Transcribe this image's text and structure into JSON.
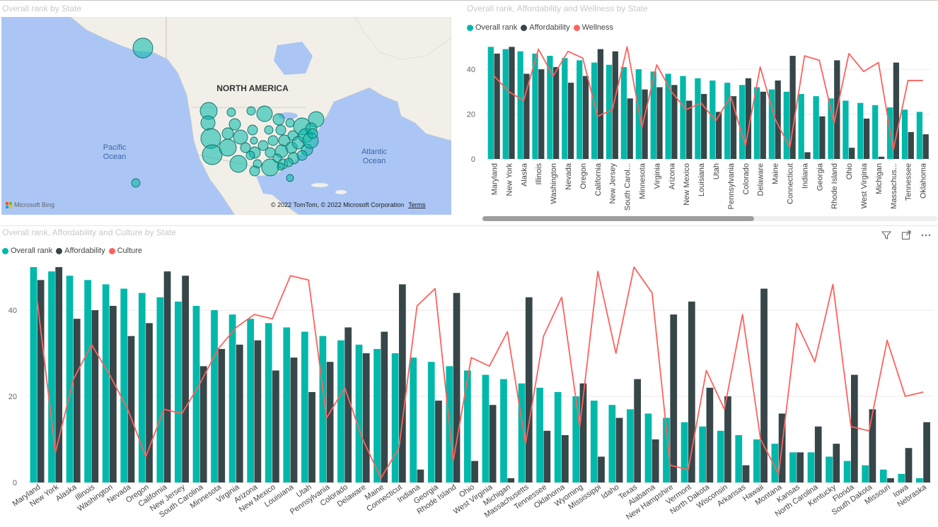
{
  "colors": {
    "overall": "#01b8aa",
    "affordability": "#374649",
    "line": "#fd625e",
    "map_water": "#abc6f4",
    "map_land": "#f2efe9"
  },
  "map_visual": {
    "title": "Overall rank by State",
    "labels": {
      "continent": "NORTH AMERICA",
      "pacific": "Pacific\nOcean",
      "atlantic": "Atlantic\nOcean"
    },
    "attribution": "© 2022 TomTom, © 2022 Microsoft Corporation",
    "terms_link": "Terms",
    "provider": "Microsoft Bing"
  },
  "toolbar": {
    "filter_icon": "filter-icon",
    "focus_icon": "focus-mode-icon",
    "more_icon": "more-options-icon"
  },
  "chart_data": [
    {
      "type": "bar",
      "title": "Overall rank, Affordability and Wellness by State",
      "legend_position": "top-left",
      "ylim": [
        0,
        52
      ],
      "yticks": [
        0,
        20,
        40
      ],
      "grid": true,
      "categories": [
        "Maryland",
        "New York",
        "Alaska",
        "Illinois",
        "Washington",
        "Nevada",
        "Oregon",
        "California",
        "New Jersey",
        "South Carol...",
        "Minnesota",
        "Virginia",
        "Arizona",
        "New Mexico",
        "Louisiana",
        "Utah",
        "Pennsylvania",
        "Colorado",
        "Delaware",
        "Maine",
        "Connecticut",
        "Indiana",
        "Georgia",
        "Rhode Island",
        "Ohio",
        "West Virginia",
        "Michigan",
        "Massachus...",
        "Tennessee",
        "Oklahoma"
      ],
      "series": [
        {
          "name": "Overall rank",
          "kind": "bar",
          "values": [
            50,
            49,
            48,
            47,
            46,
            45,
            44,
            43,
            42,
            41,
            40,
            39,
            38,
            37,
            36,
            35,
            34,
            33,
            32,
            31,
            30,
            29,
            28,
            27,
            26,
            25,
            24,
            23,
            22,
            21
          ]
        },
        {
          "name": "Affordability",
          "kind": "bar",
          "values": [
            47,
            50,
            38,
            40,
            41,
            34,
            37,
            49,
            48,
            27,
            31,
            32,
            33,
            26,
            29,
            21,
            28,
            36,
            30,
            35,
            46,
            3,
            19,
            44,
            5,
            18,
            1,
            43,
            12,
            11
          ]
        },
        {
          "name": "Wellness",
          "kind": "line",
          "values": [
            37,
            30,
            26,
            49,
            37,
            48,
            45,
            19,
            22,
            50,
            14,
            42,
            30,
            22,
            25,
            17,
            28,
            6,
            41,
            18,
            5,
            46,
            44,
            16,
            47,
            39,
            43,
            4,
            35,
            35
          ]
        }
      ]
    },
    {
      "type": "bar",
      "title": "Overall rank, Affordability and Culture by State",
      "legend_position": "top-left",
      "ylim": [
        0,
        51
      ],
      "yticks": [
        0,
        20,
        40
      ],
      "grid": true,
      "categories": [
        "Maryland",
        "New York",
        "Alaska",
        "Illinois",
        "Washington",
        "Nevada",
        "Oregon",
        "California",
        "New Jersey",
        "South Carolina",
        "Minnesota",
        "Virginia",
        "Arizona",
        "New Mexico",
        "Louisiana",
        "Utah",
        "Pennsylvania",
        "Colorado",
        "Delaware",
        "Maine",
        "Connecticut",
        "Indiana",
        "Georgia",
        "Rhode Island",
        "Ohio",
        "West Virginia",
        "Michigan",
        "Massachusetts",
        "Tennessee",
        "Oklahoma",
        "Wyoming",
        "Mississippi",
        "Idaho",
        "Texas",
        "Alabama",
        "New Hampshire",
        "Vermont",
        "North Dakota",
        "Wisconsin",
        "Arkansas",
        "Hawaii",
        "Montana",
        "Kansas",
        "North Carolina",
        "Kentucky",
        "Florida",
        "South Dakota",
        "Missouri",
        "Iowa",
        "Nebraska"
      ],
      "series": [
        {
          "name": "Overall rank",
          "kind": "bar",
          "values": [
            50,
            49,
            48,
            47,
            46,
            45,
            44,
            43,
            42,
            41,
            40,
            39,
            38,
            37,
            36,
            35,
            34,
            33,
            32,
            31,
            30,
            29,
            28,
            27,
            26,
            25,
            24,
            23,
            22,
            21,
            20,
            19,
            18,
            17,
            16,
            15,
            14,
            13,
            12,
            11,
            10,
            9,
            7,
            7,
            6,
            5,
            4,
            3,
            2,
            1
          ]
        },
        {
          "name": "Affordability",
          "kind": "bar",
          "values": [
            47,
            50,
            38,
            40,
            41,
            34,
            37,
            49,
            48,
            27,
            31,
            32,
            33,
            26,
            29,
            21,
            28,
            36,
            30,
            35,
            46,
            3,
            19,
            44,
            5,
            18,
            1,
            43,
            12,
            11,
            23,
            6,
            15,
            24,
            10,
            39,
            42,
            22,
            20,
            4,
            45,
            16,
            7,
            13,
            9,
            25,
            17,
            1,
            8,
            14
          ]
        },
        {
          "name": "Culture",
          "kind": "line",
          "values": [
            42,
            7,
            24,
            32,
            25,
            17,
            6,
            17,
            16,
            23,
            31,
            36,
            39,
            38,
            48,
            47,
            15,
            22,
            10,
            1,
            8,
            41,
            45,
            5,
            29,
            27,
            35,
            9,
            34,
            43,
            13,
            49,
            30,
            50,
            44,
            4,
            3,
            26,
            17,
            39,
            10,
            2,
            37,
            28,
            46,
            13,
            12,
            33,
            20,
            21
          ]
        }
      ]
    }
  ]
}
